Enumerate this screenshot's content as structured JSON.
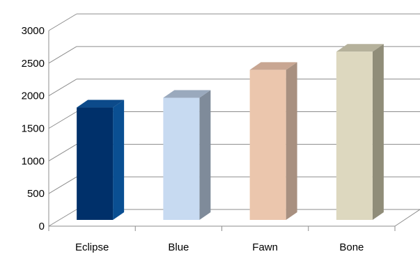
{
  "chart_data": {
    "type": "bar",
    "categories": [
      "Eclipse",
      "Blue",
      "Fawn",
      "Bone"
    ],
    "values": [
      1730,
      1880,
      2310,
      2590
    ],
    "ylim": [
      0,
      3000
    ],
    "yticks": [
      "0",
      "500",
      "1000",
      "1500",
      "2000",
      "2500",
      "3000"
    ],
    "grid": true,
    "legend": "none",
    "three_d": true,
    "colors": [
      {
        "front": "#00306a",
        "side": "#0a4f92",
        "top": "#0c4a8a"
      },
      {
        "front": "#c7daf1",
        "side": "#7f8b9a",
        "top": "#9aa9bd"
      },
      {
        "front": "#ebc6ad",
        "side": "#a89080",
        "top": "#c8a692"
      },
      {
        "front": "#ddd8bf",
        "side": "#908d79",
        "top": "#b5b19b"
      }
    ]
  }
}
